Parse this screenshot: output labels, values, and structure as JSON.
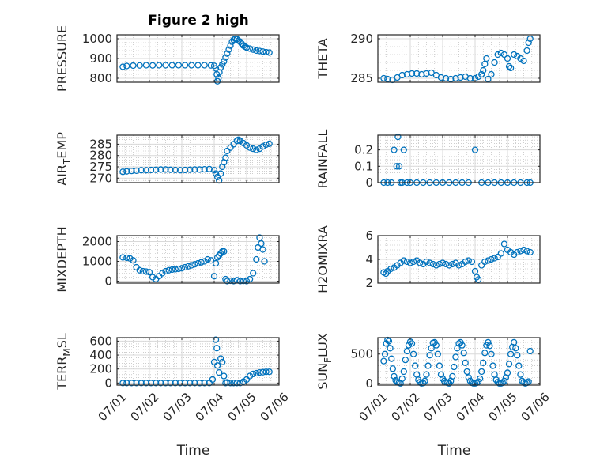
{
  "figure": {
    "title": "Figure 2 high",
    "marker_color": "#0072bd",
    "axis_color": "#262626",
    "grid_color": "#b0b0b0"
  },
  "chart_data": [
    {
      "id": "pressure",
      "type": "scatter",
      "title": "Figure 2 high",
      "ylabel": "PRESSURE",
      "ylabel_sub": "",
      "xlabel": "",
      "xlim": [
        0,
        5
      ],
      "ylim": [
        780,
        1020
      ],
      "yticks": [
        800,
        900,
        1000
      ],
      "xticks": [
        0,
        1,
        2,
        3,
        4,
        5
      ],
      "xticklabels": [],
      "grid": true,
      "x": [
        0.18,
        0.3,
        0.5,
        0.7,
        0.9,
        1.1,
        1.3,
        1.5,
        1.7,
        1.9,
        2.1,
        2.3,
        2.5,
        2.7,
        2.9,
        3.0,
        3.05,
        3.08,
        3.1,
        3.13,
        3.16,
        3.2,
        3.25,
        3.3,
        3.35,
        3.4,
        3.45,
        3.5,
        3.55,
        3.6,
        3.65,
        3.7,
        3.75,
        3.8,
        3.85,
        3.9,
        3.95,
        4.0,
        4.1,
        4.2,
        4.3,
        4.4,
        4.5,
        4.6,
        4.7
      ],
      "y": [
        858,
        862,
        864,
        865,
        866,
        865,
        866,
        866,
        866,
        866,
        866,
        866,
        866,
        866,
        865,
        863,
        850,
        820,
        785,
        800,
        830,
        855,
        870,
        885,
        905,
        925,
        945,
        965,
        985,
        995,
        1000,
        998,
        990,
        985,
        975,
        965,
        960,
        955,
        950,
        945,
        940,
        938,
        935,
        932,
        930
      ]
    },
    {
      "id": "theta",
      "type": "scatter",
      "title": "",
      "ylabel": "THETA",
      "ylabel_sub": "",
      "xlabel": "",
      "xlim": [
        0,
        5
      ],
      "ylim": [
        284.5,
        290.5
      ],
      "yticks": [
        285,
        290
      ],
      "xticks": [
        0,
        1,
        2,
        3,
        4,
        5
      ],
      "xticklabels": [],
      "grid": true,
      "x": [
        0.18,
        0.3,
        0.45,
        0.6,
        0.75,
        0.9,
        1.05,
        1.2,
        1.35,
        1.5,
        1.65,
        1.8,
        1.95,
        2.1,
        2.25,
        2.4,
        2.55,
        2.7,
        2.85,
        3.0,
        3.1,
        3.2,
        3.25,
        3.3,
        3.35,
        3.4,
        3.5,
        3.6,
        3.7,
        3.8,
        3.9,
        4.0,
        4.05,
        4.1,
        4.2,
        4.3,
        4.4,
        4.5,
        4.6,
        4.65,
        4.7
      ],
      "y": [
        285.0,
        284.9,
        284.8,
        285.1,
        285.4,
        285.5,
        285.6,
        285.6,
        285.5,
        285.6,
        285.7,
        285.4,
        285.1,
        285.0,
        284.9,
        285.0,
        285.1,
        285.2,
        285.0,
        285.0,
        285.2,
        285.5,
        286.0,
        286.8,
        287.5,
        284.9,
        285.5,
        287.0,
        288.0,
        288.2,
        288.0,
        287.5,
        286.5,
        286.3,
        288.0,
        287.8,
        287.5,
        287.2,
        288.5,
        289.5,
        290.0
      ]
    },
    {
      "id": "air-temp",
      "type": "scatter",
      "title": "",
      "ylabel": "AIR",
      "ylabel_sub": "T",
      "ylabel_after": "EMP",
      "xlabel": "",
      "xlim": [
        0,
        5
      ],
      "ylim": [
        268,
        289
      ],
      "yticks": [
        270,
        275,
        280,
        285
      ],
      "xticks": [
        0,
        1,
        2,
        3,
        4,
        5
      ],
      "xticklabels": [],
      "grid": true,
      "x": [
        0.18,
        0.3,
        0.45,
        0.6,
        0.75,
        0.9,
        1.05,
        1.2,
        1.35,
        1.5,
        1.65,
        1.8,
        1.95,
        2.1,
        2.25,
        2.4,
        2.55,
        2.7,
        2.85,
        3.0,
        3.05,
        3.1,
        3.15,
        3.2,
        3.25,
        3.3,
        3.35,
        3.4,
        3.5,
        3.6,
        3.7,
        3.75,
        3.8,
        3.9,
        4.0,
        4.1,
        4.2,
        4.3,
        4.4,
        4.5,
        4.6,
        4.7
      ],
      "y": [
        272.8,
        273.0,
        273.2,
        273.3,
        273.5,
        273.5,
        273.6,
        273.7,
        273.8,
        273.8,
        273.7,
        273.6,
        273.5,
        273.6,
        273.7,
        273.8,
        273.8,
        273.9,
        274.0,
        273.5,
        272.0,
        270.5,
        269.0,
        272.0,
        275.0,
        277.0,
        279.0,
        282.0,
        283.5,
        285.0,
        286.5,
        287.0,
        286.5,
        285.5,
        284.5,
        283.5,
        283.0,
        282.5,
        283.0,
        284.0,
        284.8,
        285.2
      ]
    },
    {
      "id": "rainfall",
      "type": "scatter",
      "title": "",
      "ylabel": "RAINFALL",
      "ylabel_sub": "",
      "xlabel": "",
      "xlim": [
        0,
        5
      ],
      "ylim": [
        0,
        0.29
      ],
      "yticks": [
        0,
        0.1,
        0.2
      ],
      "xticks": [
        0,
        1,
        2,
        3,
        4,
        5
      ],
      "xticklabels": [],
      "grid": true,
      "x": [
        0.18,
        0.3,
        0.42,
        0.5,
        0.58,
        0.62,
        0.66,
        0.7,
        0.75,
        0.8,
        0.9,
        1.0,
        1.2,
        1.4,
        1.6,
        1.8,
        2.0,
        2.2,
        2.4,
        2.6,
        2.8,
        3.0,
        3.2,
        3.4,
        3.6,
        3.8,
        4.0,
        4.2,
        4.4,
        4.6,
        4.7
      ],
      "y": [
        0,
        0,
        0,
        0.2,
        0.1,
        0.28,
        0.1,
        0,
        0,
        0.2,
        0,
        0,
        0,
        0,
        0,
        0,
        0,
        0,
        0,
        0,
        0,
        0.2,
        0,
        0,
        0,
        0,
        0,
        0,
        0,
        0,
        0
      ]
    },
    {
      "id": "mixdepth",
      "type": "scatter",
      "title": "",
      "ylabel": "MIXDEPTH",
      "ylabel_sub": "",
      "xlabel": "",
      "xlim": [
        0,
        5
      ],
      "ylim": [
        -100,
        2300
      ],
      "yticks": [
        0,
        1000,
        2000
      ],
      "xticks": [
        0,
        1,
        2,
        3,
        4,
        5
      ],
      "xticklabels": [],
      "grid": true,
      "x": [
        0.18,
        0.3,
        0.4,
        0.5,
        0.6,
        0.7,
        0.8,
        0.9,
        1.0,
        1.1,
        1.2,
        1.3,
        1.4,
        1.5,
        1.6,
        1.7,
        1.8,
        1.9,
        2.0,
        2.1,
        2.2,
        2.3,
        2.4,
        2.5,
        2.6,
        2.7,
        2.8,
        2.9,
        3.0,
        3.05,
        3.1,
        3.15,
        3.2,
        3.25,
        3.3,
        3.35,
        3.4,
        3.5,
        3.6,
        3.7,
        3.8,
        3.9,
        4.0,
        4.1,
        4.2,
        4.3,
        4.35,
        4.4,
        4.45,
        4.5,
        4.55
      ],
      "y": [
        1200,
        1180,
        1150,
        1050,
        700,
        550,
        500,
        480,
        450,
        200,
        100,
        250,
        400,
        500,
        550,
        580,
        600,
        620,
        650,
        700,
        750,
        800,
        850,
        900,
        950,
        1000,
        1100,
        1050,
        250,
        900,
        1200,
        1300,
        1400,
        1500,
        1500,
        100,
        0,
        20,
        0,
        50,
        0,
        10,
        0,
        100,
        400,
        1100,
        1700,
        2200,
        1900,
        1600,
        1000
      ]
    },
    {
      "id": "h2omixra",
      "type": "scatter",
      "title": "",
      "ylabel": "H2OMIXRA",
      "ylabel_sub": "",
      "xlabel": "",
      "xlim": [
        0,
        5
      ],
      "ylim": [
        2,
        6
      ],
      "yticks": [
        2,
        4,
        6
      ],
      "xticks": [
        0,
        1,
        2,
        3,
        4,
        5
      ],
      "xticklabels": [],
      "grid": true,
      "x": [
        0.18,
        0.25,
        0.3,
        0.4,
        0.5,
        0.6,
        0.7,
        0.8,
        0.9,
        1.0,
        1.1,
        1.2,
        1.3,
        1.4,
        1.5,
        1.6,
        1.7,
        1.8,
        1.9,
        2.0,
        2.1,
        2.2,
        2.3,
        2.4,
        2.5,
        2.6,
        2.7,
        2.8,
        2.9,
        3.0,
        3.05,
        3.1,
        3.2,
        3.3,
        3.4,
        3.5,
        3.6,
        3.7,
        3.8,
        3.9,
        4.0,
        4.1,
        4.2,
        4.3,
        4.4,
        4.5,
        4.6,
        4.7
      ],
      "y": [
        2.9,
        2.8,
        3.0,
        3.2,
        3.3,
        3.5,
        3.7,
        3.9,
        3.8,
        3.7,
        3.8,
        3.9,
        3.7,
        3.6,
        3.8,
        3.7,
        3.6,
        3.5,
        3.6,
        3.7,
        3.6,
        3.5,
        3.6,
        3.7,
        3.5,
        3.6,
        3.8,
        3.9,
        3.8,
        3.0,
        2.5,
        2.3,
        3.5,
        3.8,
        3.9,
        4.0,
        4.1,
        4.2,
        4.5,
        5.3,
        4.8,
        4.6,
        4.4,
        4.6,
        4.7,
        4.8,
        4.7,
        4.6
      ]
    },
    {
      "id": "terr-msl",
      "type": "scatter",
      "title": "",
      "ylabel": "TERR",
      "ylabel_sub": "M",
      "ylabel_after": "SL",
      "xlabel": "Time",
      "xlim": [
        0,
        5
      ],
      "ylim": [
        -30,
        650
      ],
      "yticks": [
        0,
        200,
        400,
        600
      ],
      "xticks": [
        0,
        1,
        2,
        3,
        4,
        5
      ],
      "xticklabels": [
        "07/01",
        "07/02",
        "07/03",
        "07/04",
        "07/05",
        "07/06"
      ],
      "grid": true,
      "x": [
        0.18,
        0.3,
        0.45,
        0.6,
        0.75,
        0.9,
        1.05,
        1.2,
        1.35,
        1.5,
        1.65,
        1.8,
        1.95,
        2.1,
        2.25,
        2.4,
        2.55,
        2.7,
        2.85,
        2.95,
        3.0,
        3.05,
        3.08,
        3.1,
        3.15,
        3.2,
        3.25,
        3.3,
        3.35,
        3.4,
        3.5,
        3.6,
        3.7,
        3.8,
        3.9,
        4.0,
        4.1,
        4.2,
        4.3,
        4.4,
        4.5,
        4.6,
        4.7
      ],
      "y": [
        0,
        0,
        0,
        0,
        0,
        0,
        0,
        0,
        0,
        0,
        0,
        0,
        0,
        0,
        0,
        0,
        0,
        0,
        0,
        50,
        300,
        620,
        500,
        250,
        150,
        350,
        300,
        100,
        0,
        10,
        0,
        0,
        0,
        0,
        20,
        50,
        100,
        130,
        140,
        150,
        155,
        160,
        160
      ]
    },
    {
      "id": "sun-flux",
      "type": "scatter",
      "title": "",
      "ylabel": "SUN",
      "ylabel_sub": "F",
      "ylabel_after": "LUX",
      "xlabel": "Time",
      "xlim": [
        0,
        5
      ],
      "ylim": [
        -30,
        780
      ],
      "yticks": [
        0,
        500
      ],
      "xticks": [
        0,
        1,
        2,
        3,
        4,
        5
      ],
      "xticklabels": [
        "07/01",
        "07/02",
        "07/03",
        "07/04",
        "07/05",
        "07/06"
      ],
      "grid": true,
      "x": [
        0.18,
        0.22,
        0.26,
        0.3,
        0.34,
        0.38,
        0.42,
        0.46,
        0.5,
        0.55,
        0.6,
        0.65,
        0.7,
        0.75,
        0.8,
        0.85,
        0.9,
        0.95,
        1.0,
        1.05,
        1.1,
        1.15,
        1.2,
        1.25,
        1.3,
        1.35,
        1.4,
        1.45,
        1.5,
        1.55,
        1.6,
        1.65,
        1.7,
        1.75,
        1.8,
        1.85,
        1.9,
        1.95,
        2.0,
        2.05,
        2.1,
        2.15,
        2.2,
        2.25,
        2.3,
        2.35,
        2.4,
        2.45,
        2.5,
        2.55,
        2.6,
        2.65,
        2.7,
        2.75,
        2.8,
        2.85,
        2.9,
        2.95,
        3.0,
        3.05,
        3.1,
        3.15,
        3.2,
        3.25,
        3.3,
        3.35,
        3.4,
        3.45,
        3.5,
        3.55,
        3.6,
        3.65,
        3.7,
        3.75,
        3.8,
        3.85,
        3.9,
        3.95,
        4.0,
        4.05,
        4.1,
        4.15,
        4.2,
        4.25,
        4.3,
        4.35,
        4.4,
        4.45,
        4.5,
        4.55,
        4.6,
        4.65,
        4.7
      ],
      "y": [
        380,
        500,
        680,
        740,
        720,
        600,
        420,
        250,
        120,
        50,
        20,
        10,
        0,
        80,
        200,
        400,
        550,
        650,
        710,
        680,
        500,
        300,
        150,
        60,
        20,
        0,
        5,
        40,
        150,
        300,
        480,
        600,
        690,
        700,
        650,
        500,
        300,
        150,
        80,
        40,
        20,
        10,
        0,
        40,
        120,
        280,
        450,
        600,
        680,
        700,
        650,
        520,
        350,
        200,
        100,
        40,
        10,
        0,
        0,
        10,
        30,
        80,
        200,
        350,
        520,
        650,
        700,
        640,
        500,
        300,
        150,
        60,
        20,
        0,
        0,
        10,
        40,
        100,
        180,
        330,
        500,
        620,
        700,
        600,
        480,
        300,
        150,
        40,
        20,
        0,
        10,
        30,
        550
      ]
    }
  ]
}
